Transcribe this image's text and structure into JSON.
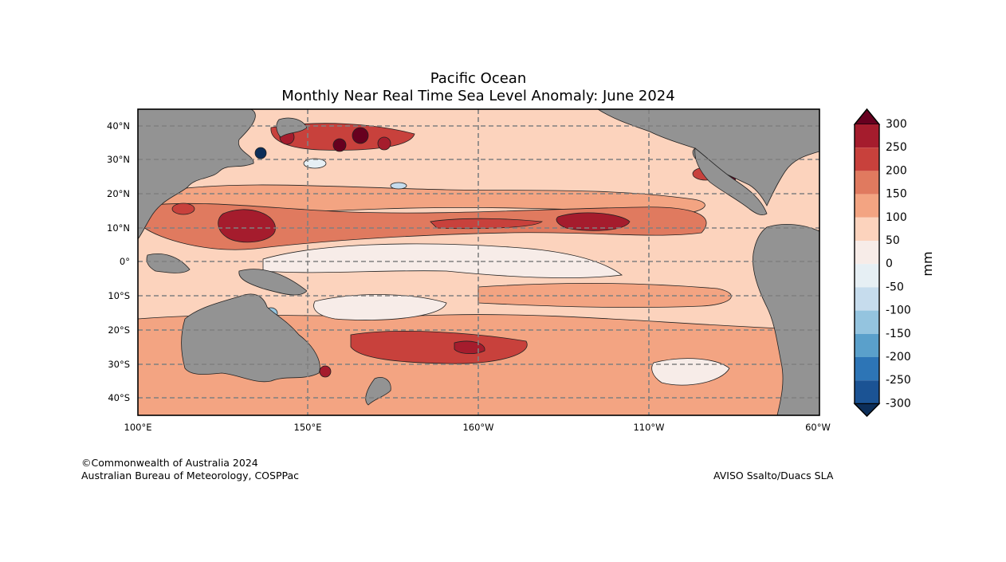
{
  "title": {
    "region": "Pacific Ocean",
    "subtitle": "Monthly Near Real Time Sea Level Anomaly: June 2024"
  },
  "map": {
    "lat_labels": [
      "40°N",
      "30°N",
      "20°N",
      "10°N",
      "0°",
      "10°S",
      "20°S",
      "30°S",
      "40°S"
    ],
    "lon_labels": [
      "100°E",
      "150°E",
      "160°W",
      "110°W",
      "60°W"
    ],
    "land_color": "#939393",
    "grid_color": "#808080"
  },
  "colorbar": {
    "unit": "mm",
    "levels": [
      300,
      250,
      200,
      150,
      100,
      50,
      0,
      -50,
      -100,
      -150,
      -200,
      -250,
      -300
    ],
    "colors": [
      "#67001f",
      "#a51c2d",
      "#c8413c",
      "#e07a5f",
      "#f3a482",
      "#fcd3bd",
      "#f7ece8",
      "#e6eff4",
      "#c6dced",
      "#94c4df",
      "#5aa0cb",
      "#2d75b6",
      "#1b5394",
      "#0c2e59"
    ]
  },
  "footer": {
    "copyright": "©Commonwealth of Australia 2024",
    "agency": "Australian Bureau of Meteorology, COSPPac",
    "source": "AVISO Ssalto/Duacs SLA"
  }
}
